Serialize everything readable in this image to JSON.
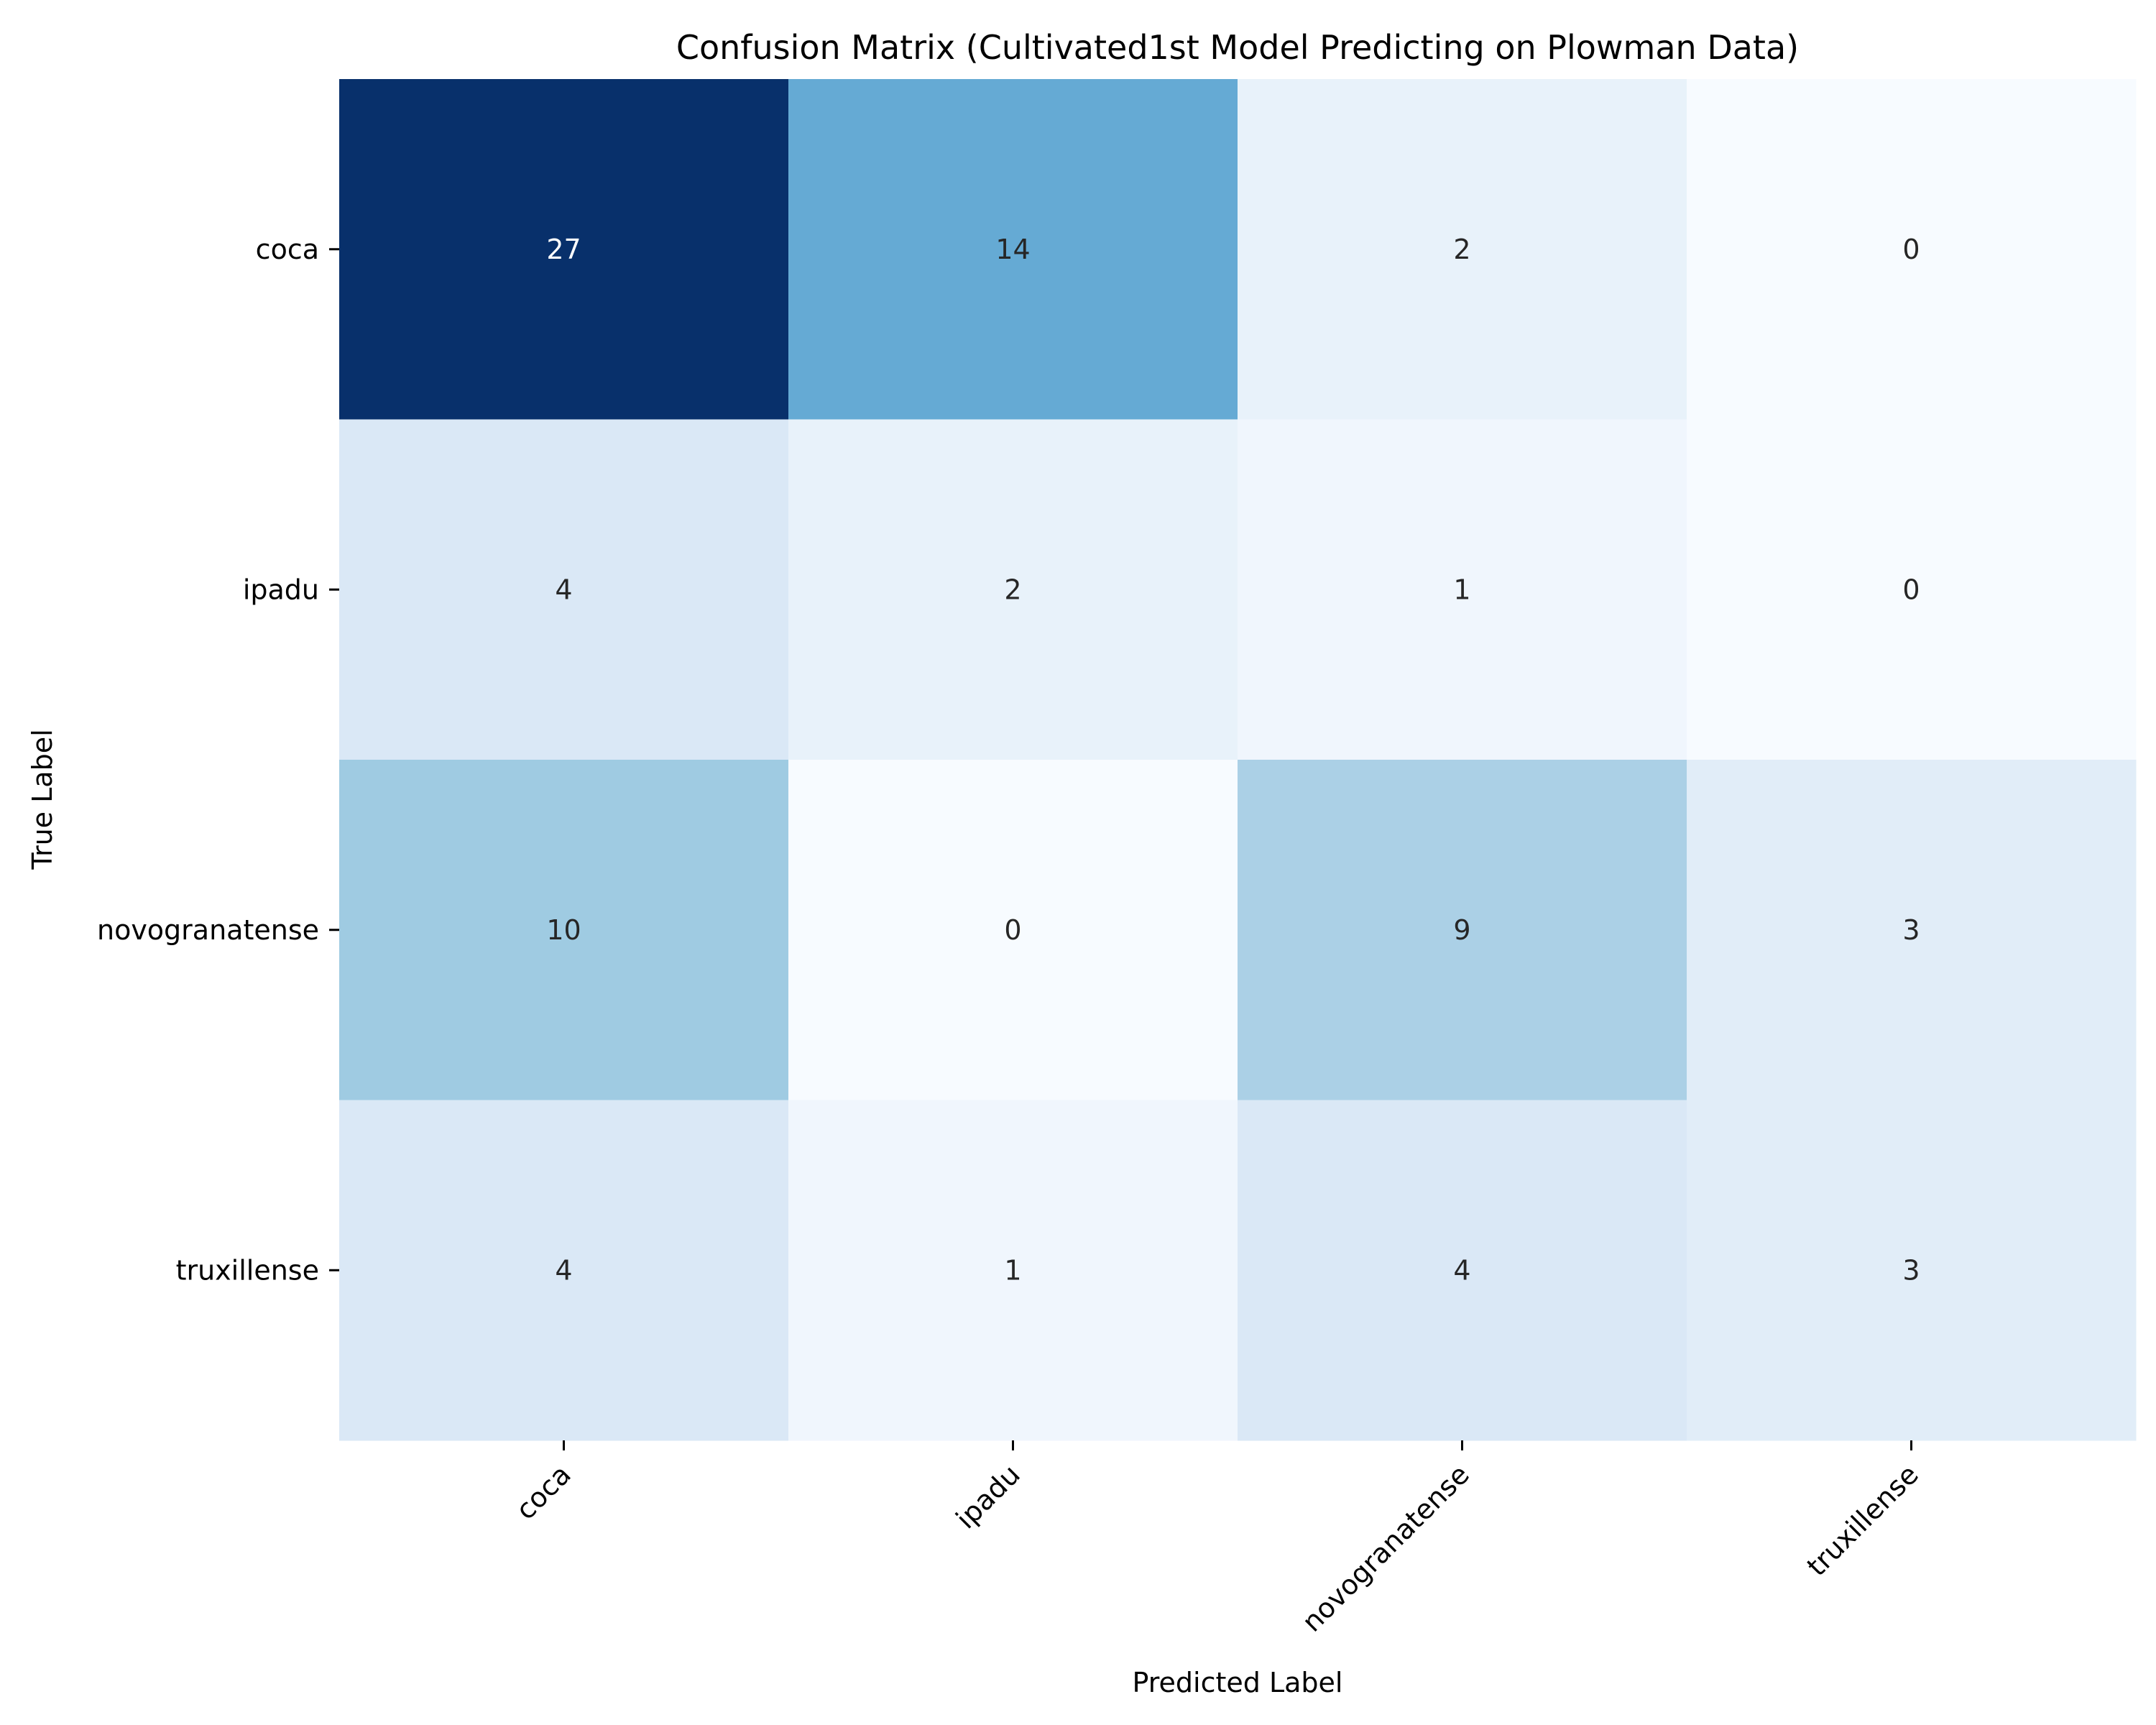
{
  "chart_data": {
    "type": "heatmap",
    "title": "Confusion Matrix (Cultivated1st Model Predicting on Plowman Data)",
    "xlabel": "Predicted Label",
    "ylabel": "True Label",
    "x_categories": [
      "coca",
      "ipadu",
      "novogranatense",
      "truxillense"
    ],
    "y_categories": [
      "coca",
      "ipadu",
      "novogranatense",
      "truxillense"
    ],
    "values": [
      [
        27,
        14,
        2,
        0
      ],
      [
        4,
        2,
        1,
        0
      ],
      [
        10,
        0,
        9,
        3
      ],
      [
        4,
        1,
        4,
        3
      ]
    ],
    "colormap": "Blues",
    "colorbar": false,
    "annotations": true
  }
}
